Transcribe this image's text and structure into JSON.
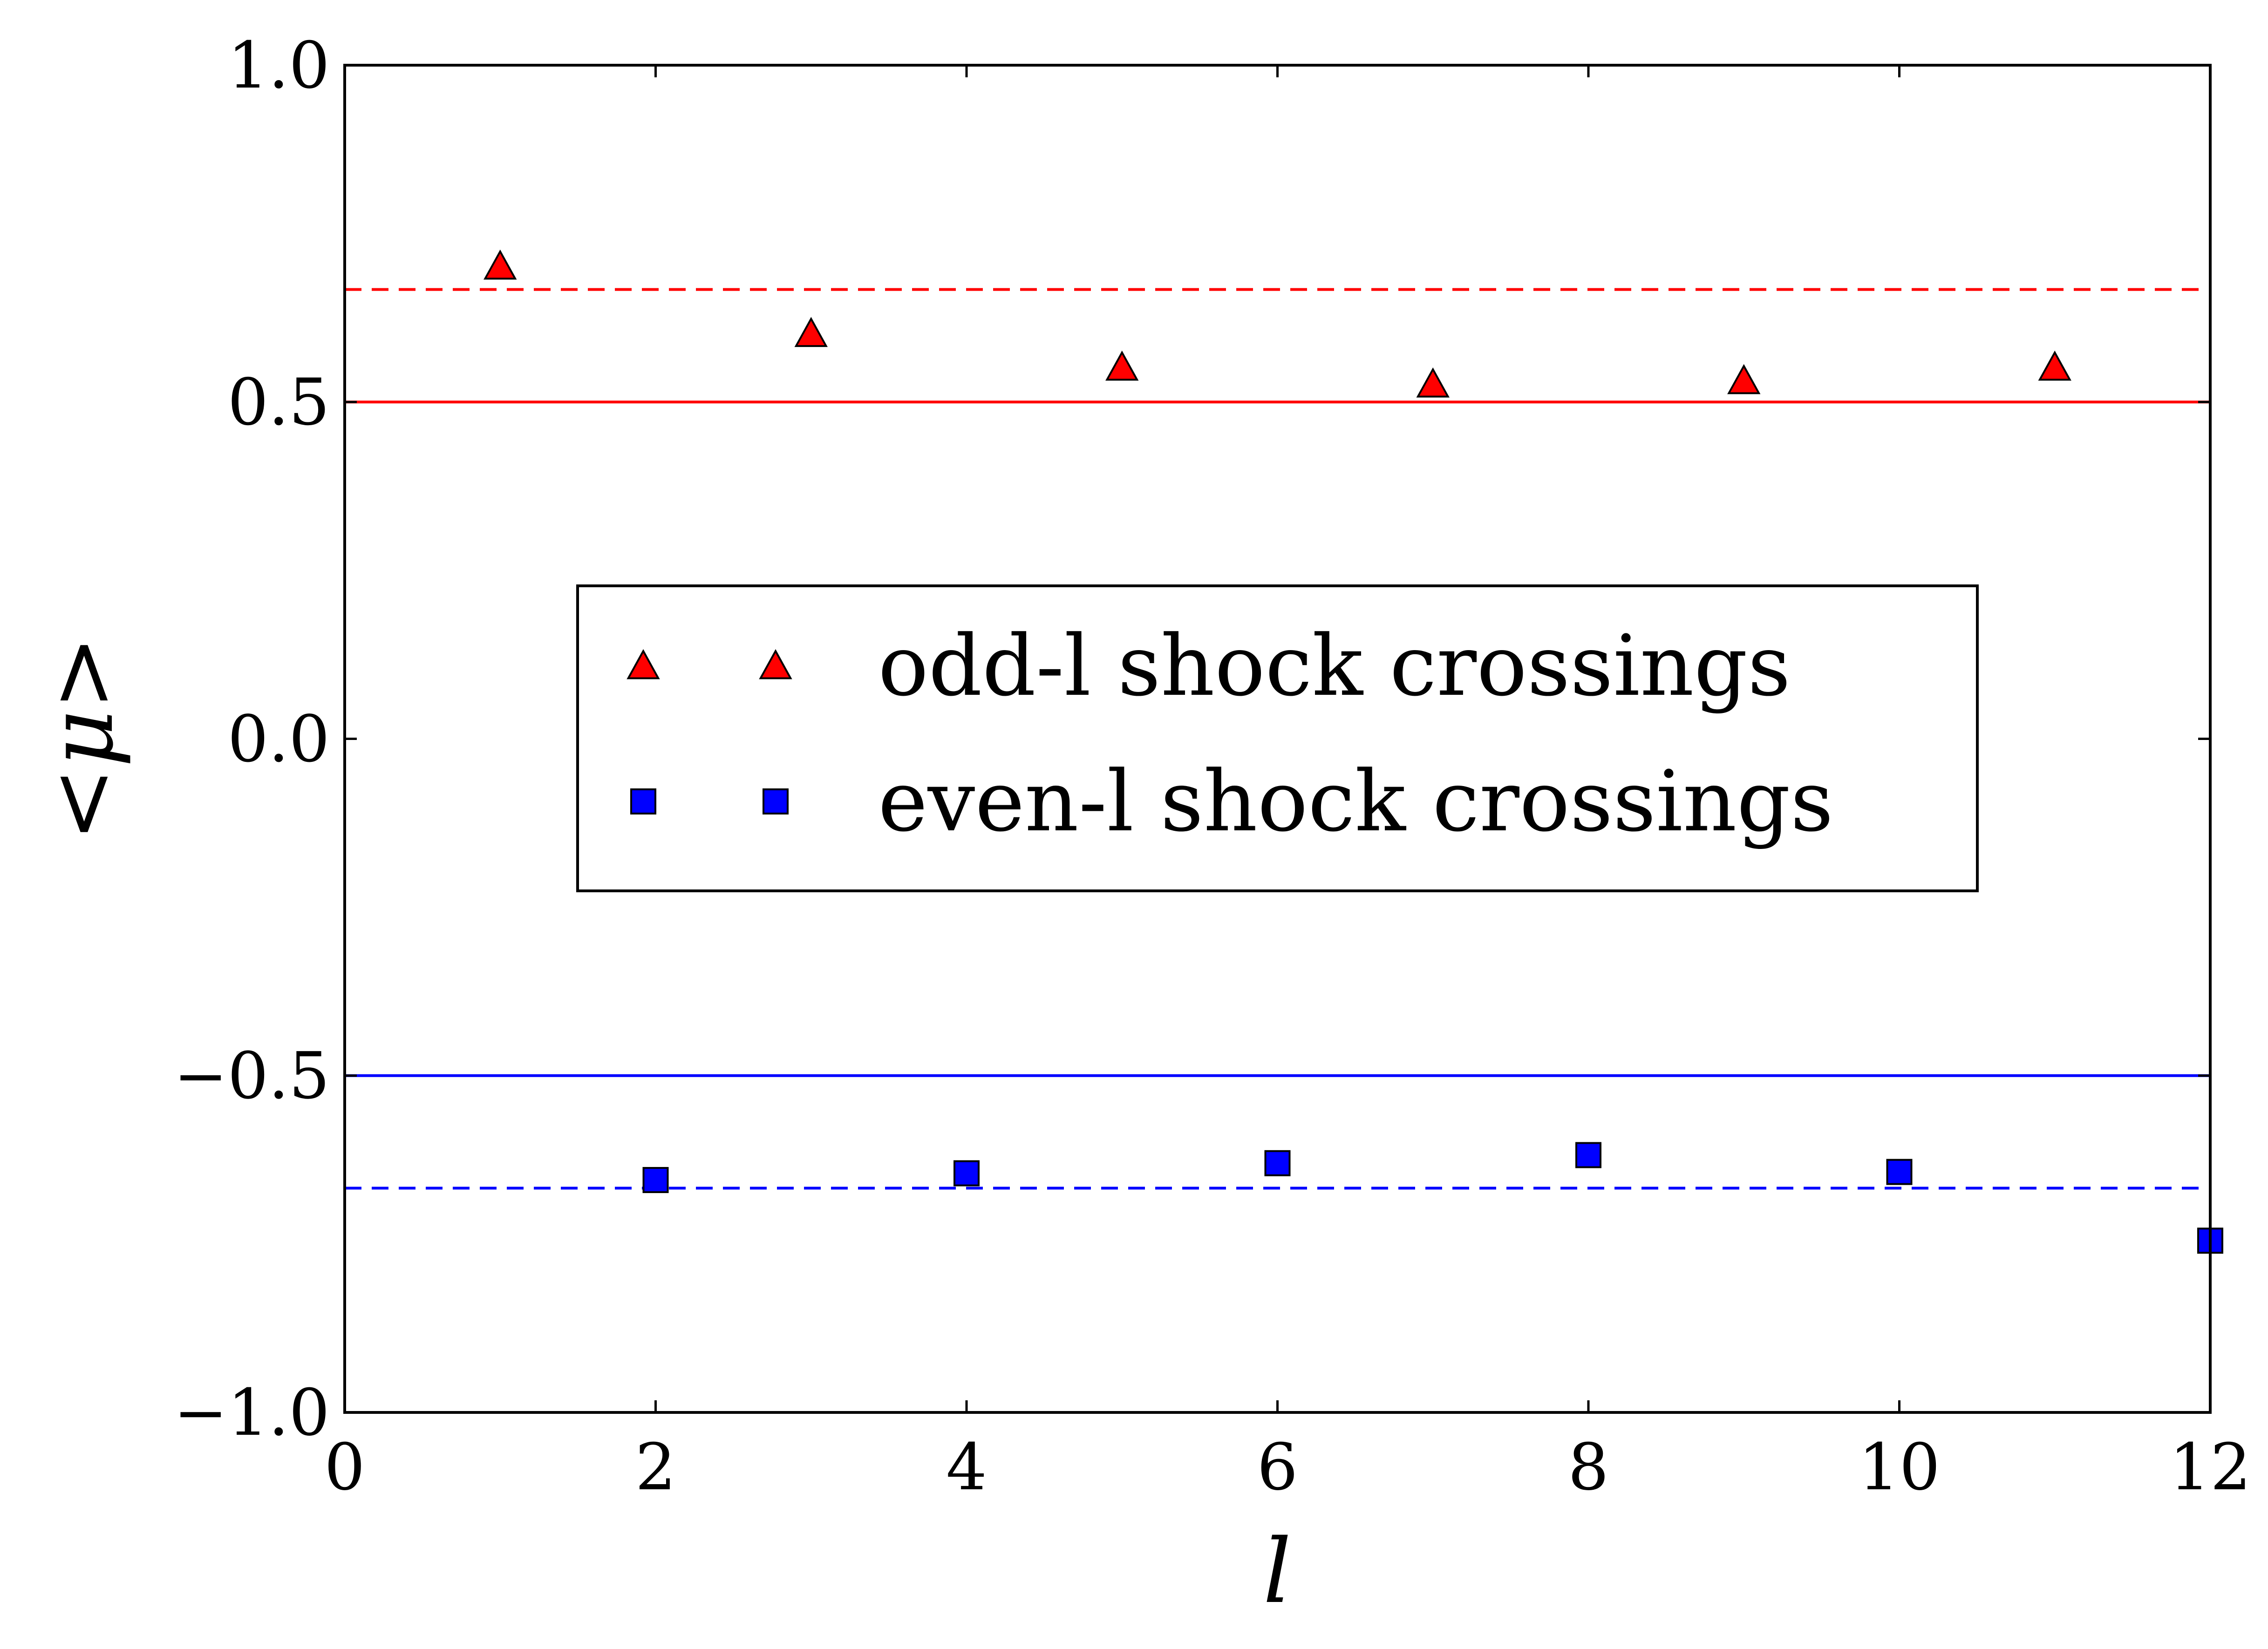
{
  "chart_data": {
    "type": "scatter",
    "xlabel": "l",
    "ylabel": "<μ>",
    "xlim": [
      0,
      12
    ],
    "ylim": [
      -1.0,
      1.0
    ],
    "x_ticks": [
      "0",
      "2",
      "4",
      "6",
      "8",
      "10",
      "12"
    ],
    "y_ticks": [
      "−1.0",
      "−0.5",
      "0.0",
      "0.5",
      "1.0"
    ],
    "x_tick_values": [
      0,
      2,
      4,
      6,
      8,
      10,
      12
    ],
    "y_tick_values": [
      -1.0,
      -0.5,
      0.0,
      0.5,
      1.0
    ],
    "grid": false,
    "legend_position": "center",
    "series": [
      {
        "name": "odd-l shock crossings",
        "marker": "triangle",
        "color": "#ff0000",
        "x": [
          1,
          3,
          5,
          7,
          9,
          11
        ],
        "y": [
          0.7,
          0.6,
          0.55,
          0.525,
          0.53,
          0.55
        ]
      },
      {
        "name": "even-l shock crossings",
        "marker": "square",
        "color": "#0000ff",
        "x": [
          2,
          4,
          6,
          8,
          10,
          12
        ],
        "y": [
          -0.655,
          -0.645,
          -0.63,
          -0.618,
          -0.643,
          -0.745
        ]
      }
    ],
    "reference_lines": [
      {
        "y": 0.5,
        "style": "solid",
        "color": "#ff0000"
      },
      {
        "y": 0.667,
        "style": "dashed",
        "color": "#ff0000"
      },
      {
        "y": -0.5,
        "style": "solid",
        "color": "#0000ff"
      },
      {
        "y": -0.667,
        "style": "dashed",
        "color": "#0000ff"
      }
    ]
  }
}
